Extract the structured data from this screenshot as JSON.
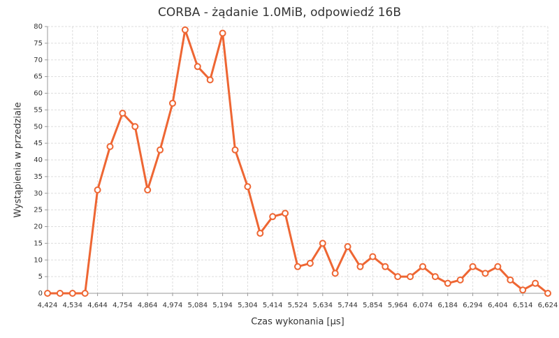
{
  "chart_data": {
    "type": "line",
    "title": "CORBA - żądanie 1.0MiB, odpowiedź 16B",
    "x_label": "Czas wykonania [µs]",
    "y_label": "Wystąpienia w przedziale",
    "x": [
      4424,
      4479,
      4534,
      4589,
      4644,
      4699,
      4754,
      4809,
      4864,
      4919,
      4974,
      5029,
      5084,
      5139,
      5194,
      5249,
      5304,
      5359,
      5414,
      5469,
      5524,
      5579,
      5634,
      5689,
      5744,
      5799,
      5854,
      5909,
      5964,
      6019,
      6074,
      6129,
      6184,
      6239,
      6294,
      6349,
      6404,
      6459,
      6514,
      6569,
      6624
    ],
    "series": [
      {
        "color": "#ee6633",
        "values": [
          0,
          0,
          0,
          0,
          31,
          44,
          54,
          50,
          31,
          43,
          57,
          79,
          68,
          64,
          78,
          43,
          32,
          18,
          23,
          24,
          8,
          9,
          15,
          6,
          14,
          8,
          11,
          8,
          5,
          5,
          8,
          5,
          3,
          4,
          8,
          6,
          8,
          4,
          1,
          3,
          0
        ]
      }
    ],
    "xlim": [
      4424,
      6624
    ],
    "xticks": [
      {
        "value": 4424,
        "label": "4,424"
      },
      {
        "value": 4534,
        "label": "4,534"
      },
      {
        "value": 4644,
        "label": "4,644"
      },
      {
        "value": 4754,
        "label": "4,754"
      },
      {
        "value": 4864,
        "label": "4,864"
      },
      {
        "value": 4974,
        "label": "4,974"
      },
      {
        "value": 5084,
        "label": "5,084"
      },
      {
        "value": 5194,
        "label": "5,194"
      },
      {
        "value": 5304,
        "label": "5,304"
      },
      {
        "value": 5414,
        "label": "5,414"
      },
      {
        "value": 5524,
        "label": "5,524"
      },
      {
        "value": 5634,
        "label": "5,634"
      },
      {
        "value": 5744,
        "label": "5,744"
      },
      {
        "value": 5854,
        "label": "5,854"
      },
      {
        "value": 5964,
        "label": "5,964"
      },
      {
        "value": 6074,
        "label": "6,074"
      },
      {
        "value": 6184,
        "label": "6,184"
      },
      {
        "value": 6294,
        "label": "6,294"
      },
      {
        "value": 6404,
        "label": "6,404"
      },
      {
        "value": 6514,
        "label": "6,514"
      },
      {
        "value": 6624,
        "label": "6,624"
      }
    ],
    "ylim": [
      0,
      80
    ],
    "yticks": [
      0,
      5,
      10,
      15,
      20,
      25,
      30,
      35,
      40,
      45,
      50,
      55,
      60,
      65,
      70,
      75,
      80
    ],
    "grid": true
  }
}
